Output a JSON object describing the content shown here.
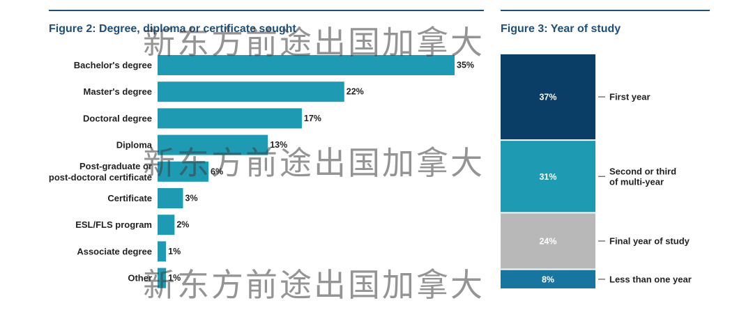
{
  "colors": {
    "rule": "#1f4e79",
    "title": "#1f4e79",
    "bar": "#1e9bb3",
    "label": "#222222",
    "stack_first": "#0b3e66",
    "stack_second": "#1e9bb3",
    "stack_final": "#b8b8b8",
    "stack_less": "#17759f",
    "stack_value_text": "#ffffff"
  },
  "figure2": {
    "title": "Figure 2: Degree, diploma or certificate sought"
  },
  "figure3": {
    "title": "Figure 3: Year of study"
  },
  "watermark": {
    "text": "新东方前途出国加拿大"
  },
  "chart_data": [
    {
      "type": "bar",
      "orientation": "horizontal",
      "title": "Figure 2: Degree, diploma or certificate sought",
      "categories": [
        [
          "Bachelor's degree"
        ],
        [
          "Master's degree"
        ],
        [
          "Doctoral degree"
        ],
        [
          "Diploma"
        ],
        [
          "Post-graduate or",
          "post-doctoral certificate"
        ],
        [
          "Certificate"
        ],
        [
          "ESL/FLS program"
        ],
        [
          "Associate degree"
        ],
        [
          "Other"
        ]
      ],
      "values": [
        35,
        22,
        17,
        13,
        6,
        3,
        2,
        1,
        1
      ],
      "value_labels": [
        "35%",
        "22%",
        "17%",
        "13%",
        "6%",
        "3%",
        "2%",
        "1%",
        "1%"
      ],
      "unit": "%",
      "xlim": [
        0,
        35
      ],
      "grid": false,
      "legend": "none"
    },
    {
      "type": "bar",
      "stacked": true,
      "title": "Figure 3: Year of study",
      "series": [
        {
          "name": "First year",
          "value": 37,
          "value_label": "37%",
          "label_lines": [
            "First year"
          ]
        },
        {
          "name": "Second or third of multi-year",
          "value": 31,
          "value_label": "31%",
          "label_lines": [
            "Second or third",
            "of multi-year"
          ]
        },
        {
          "name": "Final year of study",
          "value": 24,
          "value_label": "24%",
          "label_lines": [
            "Final year of study"
          ]
        },
        {
          "name": "Less than one year",
          "value": 8,
          "value_label": "8%",
          "label_lines": [
            "Less than one year"
          ]
        }
      ],
      "unit": "%",
      "grid": false,
      "legend": "right (leader lines)"
    }
  ]
}
